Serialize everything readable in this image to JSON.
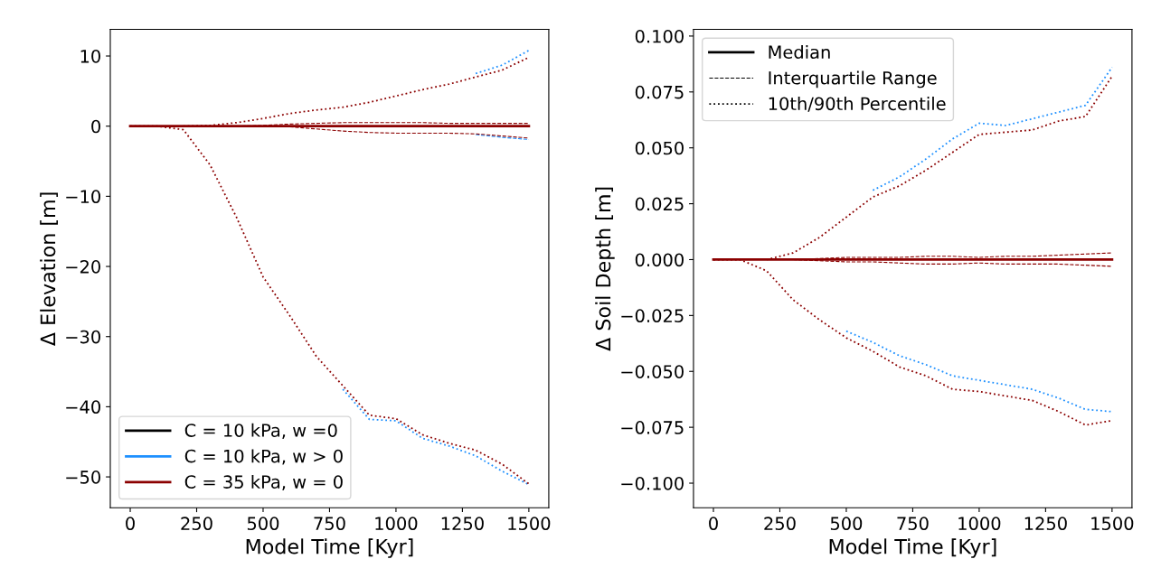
{
  "chart_data": [
    {
      "type": "line",
      "xlabel": "Model Time [Kyr]",
      "ylabel": "Δ Elevation [m]",
      "x": [
        0,
        100,
        200,
        300,
        400,
        500,
        600,
        700,
        800,
        900,
        1000,
        1100,
        1200,
        1300,
        1400,
        1500
      ],
      "xlim": [
        -75,
        1575
      ],
      "xticks": [
        0,
        250,
        500,
        750,
        1000,
        1250,
        1500
      ],
      "ylim": [
        -54.4,
        13.8
      ],
      "yticks": [
        {
          "value": -50,
          "label": "−50"
        },
        {
          "value": -40,
          "label": "−40"
        },
        {
          "value": -30,
          "label": "−30"
        },
        {
          "value": -20,
          "label": "−20"
        },
        {
          "value": -10,
          "label": "−10"
        },
        0,
        10
      ],
      "grid": false,
      "legend": "bottom left",
      "series": [
        {
          "name": "C = 10 kPa, w =0",
          "color": "#000000",
          "line_style": "solid",
          "values": [
            null,
            null,
            null,
            null,
            null,
            null,
            null,
            null,
            null,
            null,
            null,
            null,
            null,
            null,
            null,
            null
          ]
        },
        {
          "color": "#000000",
          "line_style": "dashed",
          "values": [
            null,
            null,
            null,
            null,
            null,
            null,
            null,
            null,
            null,
            null,
            null,
            null,
            null,
            null,
            null,
            null
          ]
        },
        {
          "color": "#000000",
          "line_style": "dashed",
          "values": [
            null,
            null,
            null,
            null,
            null,
            null,
            null,
            null,
            null,
            null,
            null,
            null,
            null,
            null,
            null,
            null
          ]
        },
        {
          "color": "#000000",
          "line_style": "dotted",
          "values": [
            null,
            null,
            null,
            null,
            null,
            null,
            null,
            null,
            null,
            null,
            null,
            null,
            null,
            null,
            null,
            null
          ]
        },
        {
          "color": "#000000",
          "line_style": "dotted",
          "values": [
            null,
            null,
            null,
            null,
            null,
            null,
            null,
            null,
            null,
            null,
            null,
            null,
            null,
            null,
            null,
            null
          ]
        },
        {
          "name": "C = 10 kPa, w > 0",
          "color": "#1e90ff",
          "line_style": "solid",
          "values": [
            null,
            null,
            null,
            null,
            null,
            null,
            null,
            null,
            null,
            null,
            null,
            null,
            null,
            null,
            null,
            null
          ]
        },
        {
          "color": "#1e90ff",
          "line_style": "dashed",
          "values": [
            null,
            null,
            null,
            null,
            null,
            null,
            null,
            null,
            null,
            null,
            null,
            null,
            null,
            null,
            null,
            null
          ]
        },
        {
          "color": "#1e90ff",
          "line_style": "dashed",
          "values": [
            null,
            null,
            null,
            null,
            null,
            null,
            null,
            null,
            null,
            null,
            null,
            null,
            null,
            -1.2,
            -1.6,
            -1.9
          ]
        },
        {
          "color": "#1e90ff",
          "line_style": "dotted",
          "values": [
            null,
            null,
            null,
            null,
            null,
            null,
            null,
            null,
            null,
            null,
            null,
            null,
            null,
            7.5,
            8.7,
            10.8
          ]
        },
        {
          "color": "#1e90ff",
          "line_style": "dotted",
          "values": [
            null,
            null,
            null,
            null,
            null,
            null,
            null,
            null,
            -37.5,
            -41.8,
            -42,
            -44.5,
            -45.6,
            -47,
            -49.2,
            -51.1
          ]
        },
        {
          "name": "C = 35 kPa, w = 0",
          "color": "#8b0000",
          "line_style": "solid",
          "values": [
            0,
            0,
            0,
            0,
            0,
            0,
            0,
            0,
            0,
            0,
            0,
            0,
            0,
            0,
            0,
            0
          ]
        },
        {
          "color": "#8b0000",
          "line_style": "dashed",
          "values": [
            null,
            null,
            null,
            0,
            0,
            0.1,
            0.3,
            0.4,
            0.5,
            0.5,
            0.5,
            0.5,
            0.4,
            0.4,
            0.4,
            0.4
          ]
        },
        {
          "color": "#8b0000",
          "line_style": "dashed",
          "values": [
            null,
            null,
            null,
            0,
            0,
            0,
            -0.1,
            -0.4,
            -0.7,
            -0.9,
            -1.0,
            -1.0,
            -1.0,
            -1.1,
            -1.4,
            -1.7
          ]
        },
        {
          "color": "#8b0000",
          "line_style": "dotted",
          "values": [
            null,
            null,
            0,
            0.1,
            0.5,
            1.1,
            1.8,
            2.3,
            2.7,
            3.4,
            4.3,
            5.2,
            6.0,
            7.0,
            8.0,
            9.8
          ]
        },
        {
          "color": "#8b0000",
          "line_style": "dotted",
          "values": [
            0,
            0,
            -0.5,
            -5.5,
            -13,
            -21.5,
            -27,
            -32.8,
            -37,
            -41.2,
            -41.7,
            -44,
            -45.2,
            -46.2,
            -48.2,
            -51
          ]
        }
      ]
    },
    {
      "type": "line",
      "xlabel": "Model Time [Kyr]",
      "ylabel": "Δ Soil Depth [m]",
      "x": [
        0,
        100,
        200,
        300,
        400,
        500,
        600,
        700,
        800,
        900,
        1000,
        1100,
        1200,
        1300,
        1400,
        1500
      ],
      "xlim": [
        -75,
        1575
      ],
      "xticks": [
        0,
        250,
        500,
        750,
        1000,
        1250,
        1500
      ],
      "ylim": [
        -0.111,
        0.103
      ],
      "yticks": [
        {
          "value": -0.1,
          "label": "−0.100"
        },
        {
          "value": -0.075,
          "label": "−0.075"
        },
        {
          "value": -0.05,
          "label": "−0.050"
        },
        {
          "value": -0.025,
          "label": "−0.025"
        },
        {
          "value": 0,
          "label": "0.000"
        },
        {
          "value": 0.025,
          "label": "0.025"
        },
        {
          "value": 0.05,
          "label": "0.050"
        },
        {
          "value": 0.075,
          "label": "0.075"
        },
        {
          "value": 0.1,
          "label": "0.100"
        }
      ],
      "grid": false,
      "legend": "top left",
      "series": [
        {
          "name": "Median",
          "color": "#000000",
          "line_style": "solid",
          "values": [
            null,
            null,
            null,
            null,
            null,
            null,
            null,
            null,
            null,
            null,
            null,
            null,
            null,
            null,
            null,
            null
          ]
        },
        {
          "name": "Interquartile Range",
          "color": "#000000",
          "line_style": "dashed",
          "values": [
            null,
            null,
            null,
            null,
            null,
            null,
            null,
            null,
            null,
            null,
            null,
            null,
            null,
            null,
            null,
            null
          ]
        },
        {
          "color": "#000000",
          "line_style": "dashed",
          "values": [
            null,
            null,
            null,
            null,
            null,
            null,
            null,
            null,
            null,
            null,
            null,
            null,
            null,
            null,
            null,
            null
          ]
        },
        {
          "name": "10th/90th Percentile",
          "color": "#000000",
          "line_style": "dotted",
          "values": [
            null,
            null,
            null,
            null,
            null,
            null,
            null,
            null,
            null,
            null,
            null,
            null,
            null,
            null,
            null,
            null
          ]
        },
        {
          "color": "#000000",
          "line_style": "dotted",
          "values": [
            null,
            null,
            null,
            null,
            null,
            null,
            null,
            null,
            null,
            null,
            null,
            null,
            null,
            null,
            null,
            null
          ]
        },
        {
          "color": "#1e90ff",
          "line_style": "solid",
          "values": [
            null,
            null,
            null,
            null,
            null,
            null,
            null,
            null,
            null,
            null,
            null,
            null,
            null,
            null,
            null,
            null
          ]
        },
        {
          "color": "#1e90ff",
          "line_style": "dashed",
          "values": [
            null,
            null,
            null,
            null,
            null,
            null,
            null,
            null,
            null,
            null,
            null,
            null,
            null,
            null,
            null,
            null
          ]
        },
        {
          "color": "#1e90ff",
          "line_style": "dashed",
          "values": [
            null,
            null,
            null,
            null,
            null,
            null,
            null,
            null,
            null,
            null,
            null,
            null,
            null,
            null,
            null,
            null
          ]
        },
        {
          "color": "#1e90ff",
          "line_style": "dotted",
          "values": [
            null,
            null,
            null,
            null,
            null,
            null,
            0.031,
            0.037,
            0.045,
            0.054,
            0.061,
            0.06,
            0.063,
            0.066,
            0.069,
            0.086
          ]
        },
        {
          "color": "#1e90ff",
          "line_style": "dotted",
          "values": [
            null,
            null,
            null,
            null,
            null,
            -0.032,
            -0.037,
            -0.043,
            -0.047,
            -0.052,
            -0.054,
            -0.056,
            -0.058,
            -0.062,
            -0.067,
            -0.068
          ]
        },
        {
          "color": "#8b0000",
          "line_style": "solid",
          "values": [
            0,
            0,
            0,
            0,
            0,
            0,
            0,
            0,
            0,
            0,
            0,
            0,
            0,
            0,
            0,
            0
          ]
        },
        {
          "color": "#8b0000",
          "line_style": "dashed",
          "values": [
            null,
            null,
            null,
            0,
            0.0005,
            0.001,
            0.001,
            0.001,
            0.0015,
            0.0015,
            0.001,
            0.0015,
            0.0015,
            0.002,
            0.0025,
            0.003
          ]
        },
        {
          "color": "#8b0000",
          "line_style": "dashed",
          "values": [
            null,
            null,
            null,
            0,
            -0.0005,
            -0.001,
            -0.001,
            -0.0015,
            -0.002,
            -0.002,
            -0.0015,
            -0.002,
            -0.002,
            -0.002,
            -0.0025,
            -0.003
          ]
        },
        {
          "color": "#8b0000",
          "line_style": "dotted",
          "values": [
            null,
            null,
            0,
            0.003,
            0.01,
            0.019,
            0.028,
            0.033,
            0.04,
            0.048,
            0.056,
            0.057,
            0.058,
            0.062,
            0.064,
            0.082
          ]
        },
        {
          "color": "#8b0000",
          "line_style": "dotted",
          "values": [
            0,
            0,
            -0.005,
            -0.018,
            -0.027,
            -0.035,
            -0.041,
            -0.048,
            -0.052,
            -0.058,
            -0.059,
            -0.061,
            -0.063,
            -0.068,
            -0.074,
            -0.072
          ]
        }
      ]
    }
  ]
}
